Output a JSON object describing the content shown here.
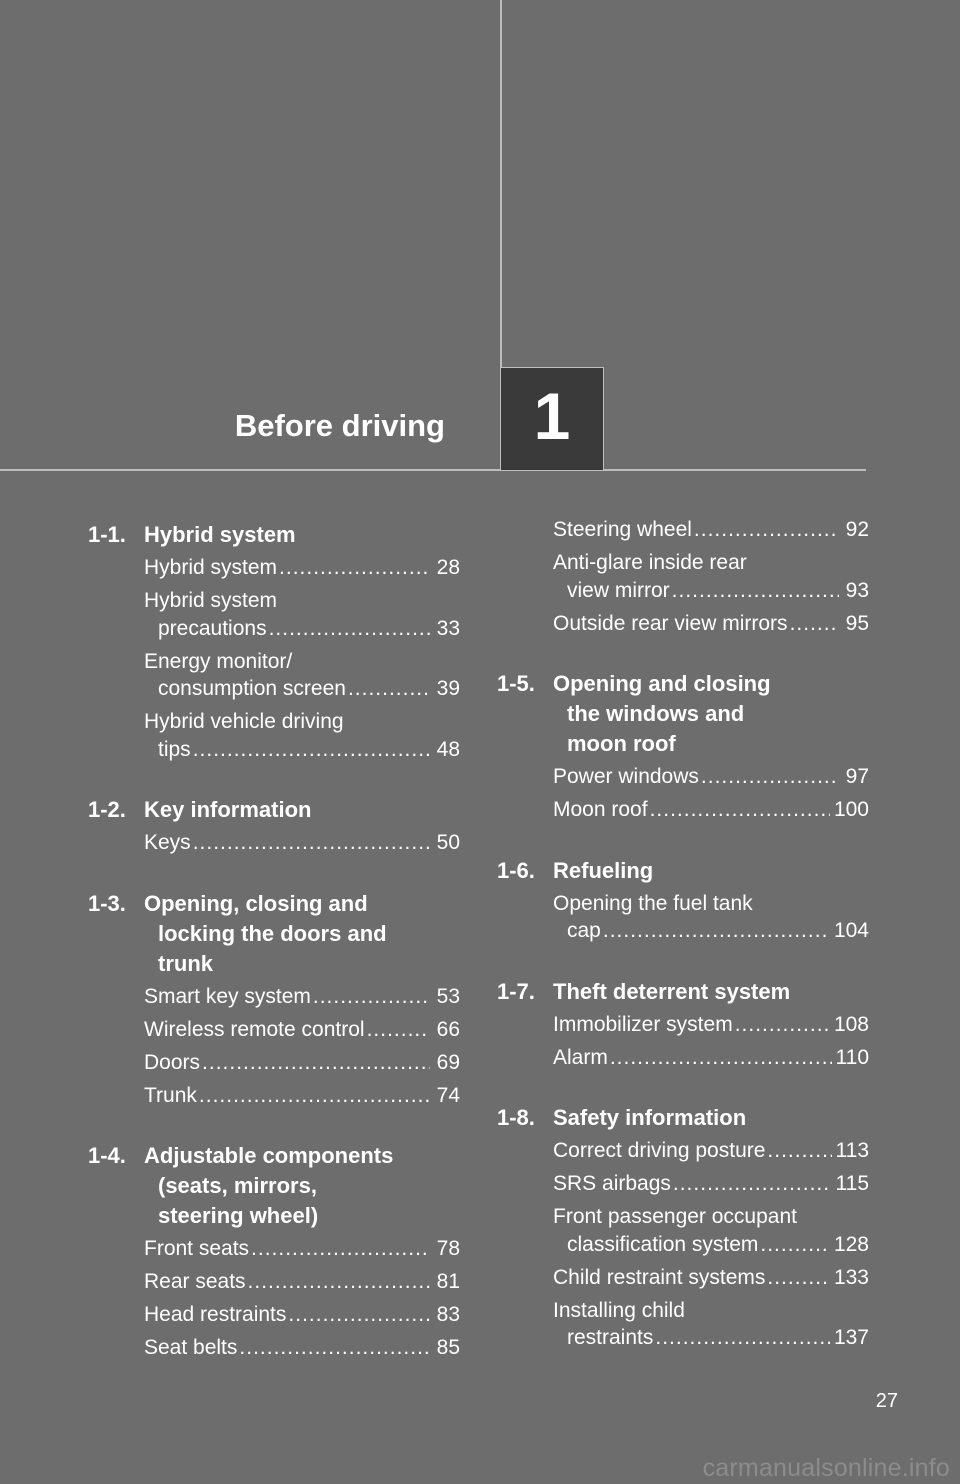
{
  "header": {
    "title": "Before driving",
    "chapter_number": "1"
  },
  "sections_left": [
    {
      "num": "1-1.",
      "title": [
        "Hybrid system"
      ],
      "entries": [
        {
          "lines": [
            "Hybrid system"
          ],
          "page": "28"
        },
        {
          "lines": [
            "Hybrid system",
            "precautions"
          ],
          "page": "33"
        },
        {
          "lines": [
            "Energy monitor/",
            "consumption screen"
          ],
          "page": "39"
        },
        {
          "lines": [
            "Hybrid vehicle driving",
            "tips"
          ],
          "page": "48"
        }
      ]
    },
    {
      "num": "1-2.",
      "title": [
        "Key information"
      ],
      "entries": [
        {
          "lines": [
            "Keys"
          ],
          "page": "50"
        }
      ]
    },
    {
      "num": "1-3.",
      "title": [
        "Opening, closing and",
        "locking the doors and",
        "trunk"
      ],
      "entries": [
        {
          "lines": [
            "Smart key system"
          ],
          "page": "53"
        },
        {
          "lines": [
            "Wireless remote control"
          ],
          "page": "66"
        },
        {
          "lines": [
            "Doors"
          ],
          "page": "69"
        },
        {
          "lines": [
            "Trunk"
          ],
          "page": "74"
        }
      ]
    },
    {
      "num": "1-4.",
      "title": [
        "Adjustable components",
        "(seats, mirrors,",
        "steering wheel)"
      ],
      "entries": [
        {
          "lines": [
            "Front seats"
          ],
          "page": "78"
        },
        {
          "lines": [
            "Rear seats"
          ],
          "page": "81"
        },
        {
          "lines": [
            "Head restraints"
          ],
          "page": "83"
        },
        {
          "lines": [
            "Seat belts"
          ],
          "page": "85"
        }
      ]
    }
  ],
  "continued_entries": [
    {
      "lines": [
        "Steering wheel"
      ],
      "page": "92"
    },
    {
      "lines": [
        "Anti-glare inside rear",
        "view mirror"
      ],
      "page": "93"
    },
    {
      "lines": [
        "Outside rear view mirrors"
      ],
      "page": "95"
    }
  ],
  "sections_right": [
    {
      "num": "1-5.",
      "title": [
        "Opening and closing",
        "the windows and",
        "moon roof"
      ],
      "entries": [
        {
          "lines": [
            "Power windows"
          ],
          "page": "97"
        },
        {
          "lines": [
            "Moon roof"
          ],
          "page": "100"
        }
      ]
    },
    {
      "num": "1-6.",
      "title": [
        "Refueling"
      ],
      "entries": [
        {
          "lines": [
            "Opening the fuel tank",
            "cap"
          ],
          "page": "104"
        }
      ]
    },
    {
      "num": "1-7.",
      "title": [
        "Theft deterrent system"
      ],
      "entries": [
        {
          "lines": [
            "Immobilizer system"
          ],
          "page": "108"
        },
        {
          "lines": [
            "Alarm"
          ],
          "page": "110"
        }
      ]
    },
    {
      "num": "1-8.",
      "title": [
        "Safety information"
      ],
      "entries": [
        {
          "lines": [
            "Correct driving posture"
          ],
          "page": "113"
        },
        {
          "lines": [
            "SRS airbags"
          ],
          "page": "115"
        },
        {
          "lines": [
            "Front passenger occupant",
            "classification system"
          ],
          "page": "128"
        },
        {
          "lines": [
            "Child restraint systems"
          ],
          "page": "133"
        },
        {
          "lines": [
            "Installing child",
            "restraints"
          ],
          "page": "137"
        }
      ]
    }
  ],
  "footer": {
    "page_number": "27",
    "watermark": "carmanualsonline.info"
  }
}
